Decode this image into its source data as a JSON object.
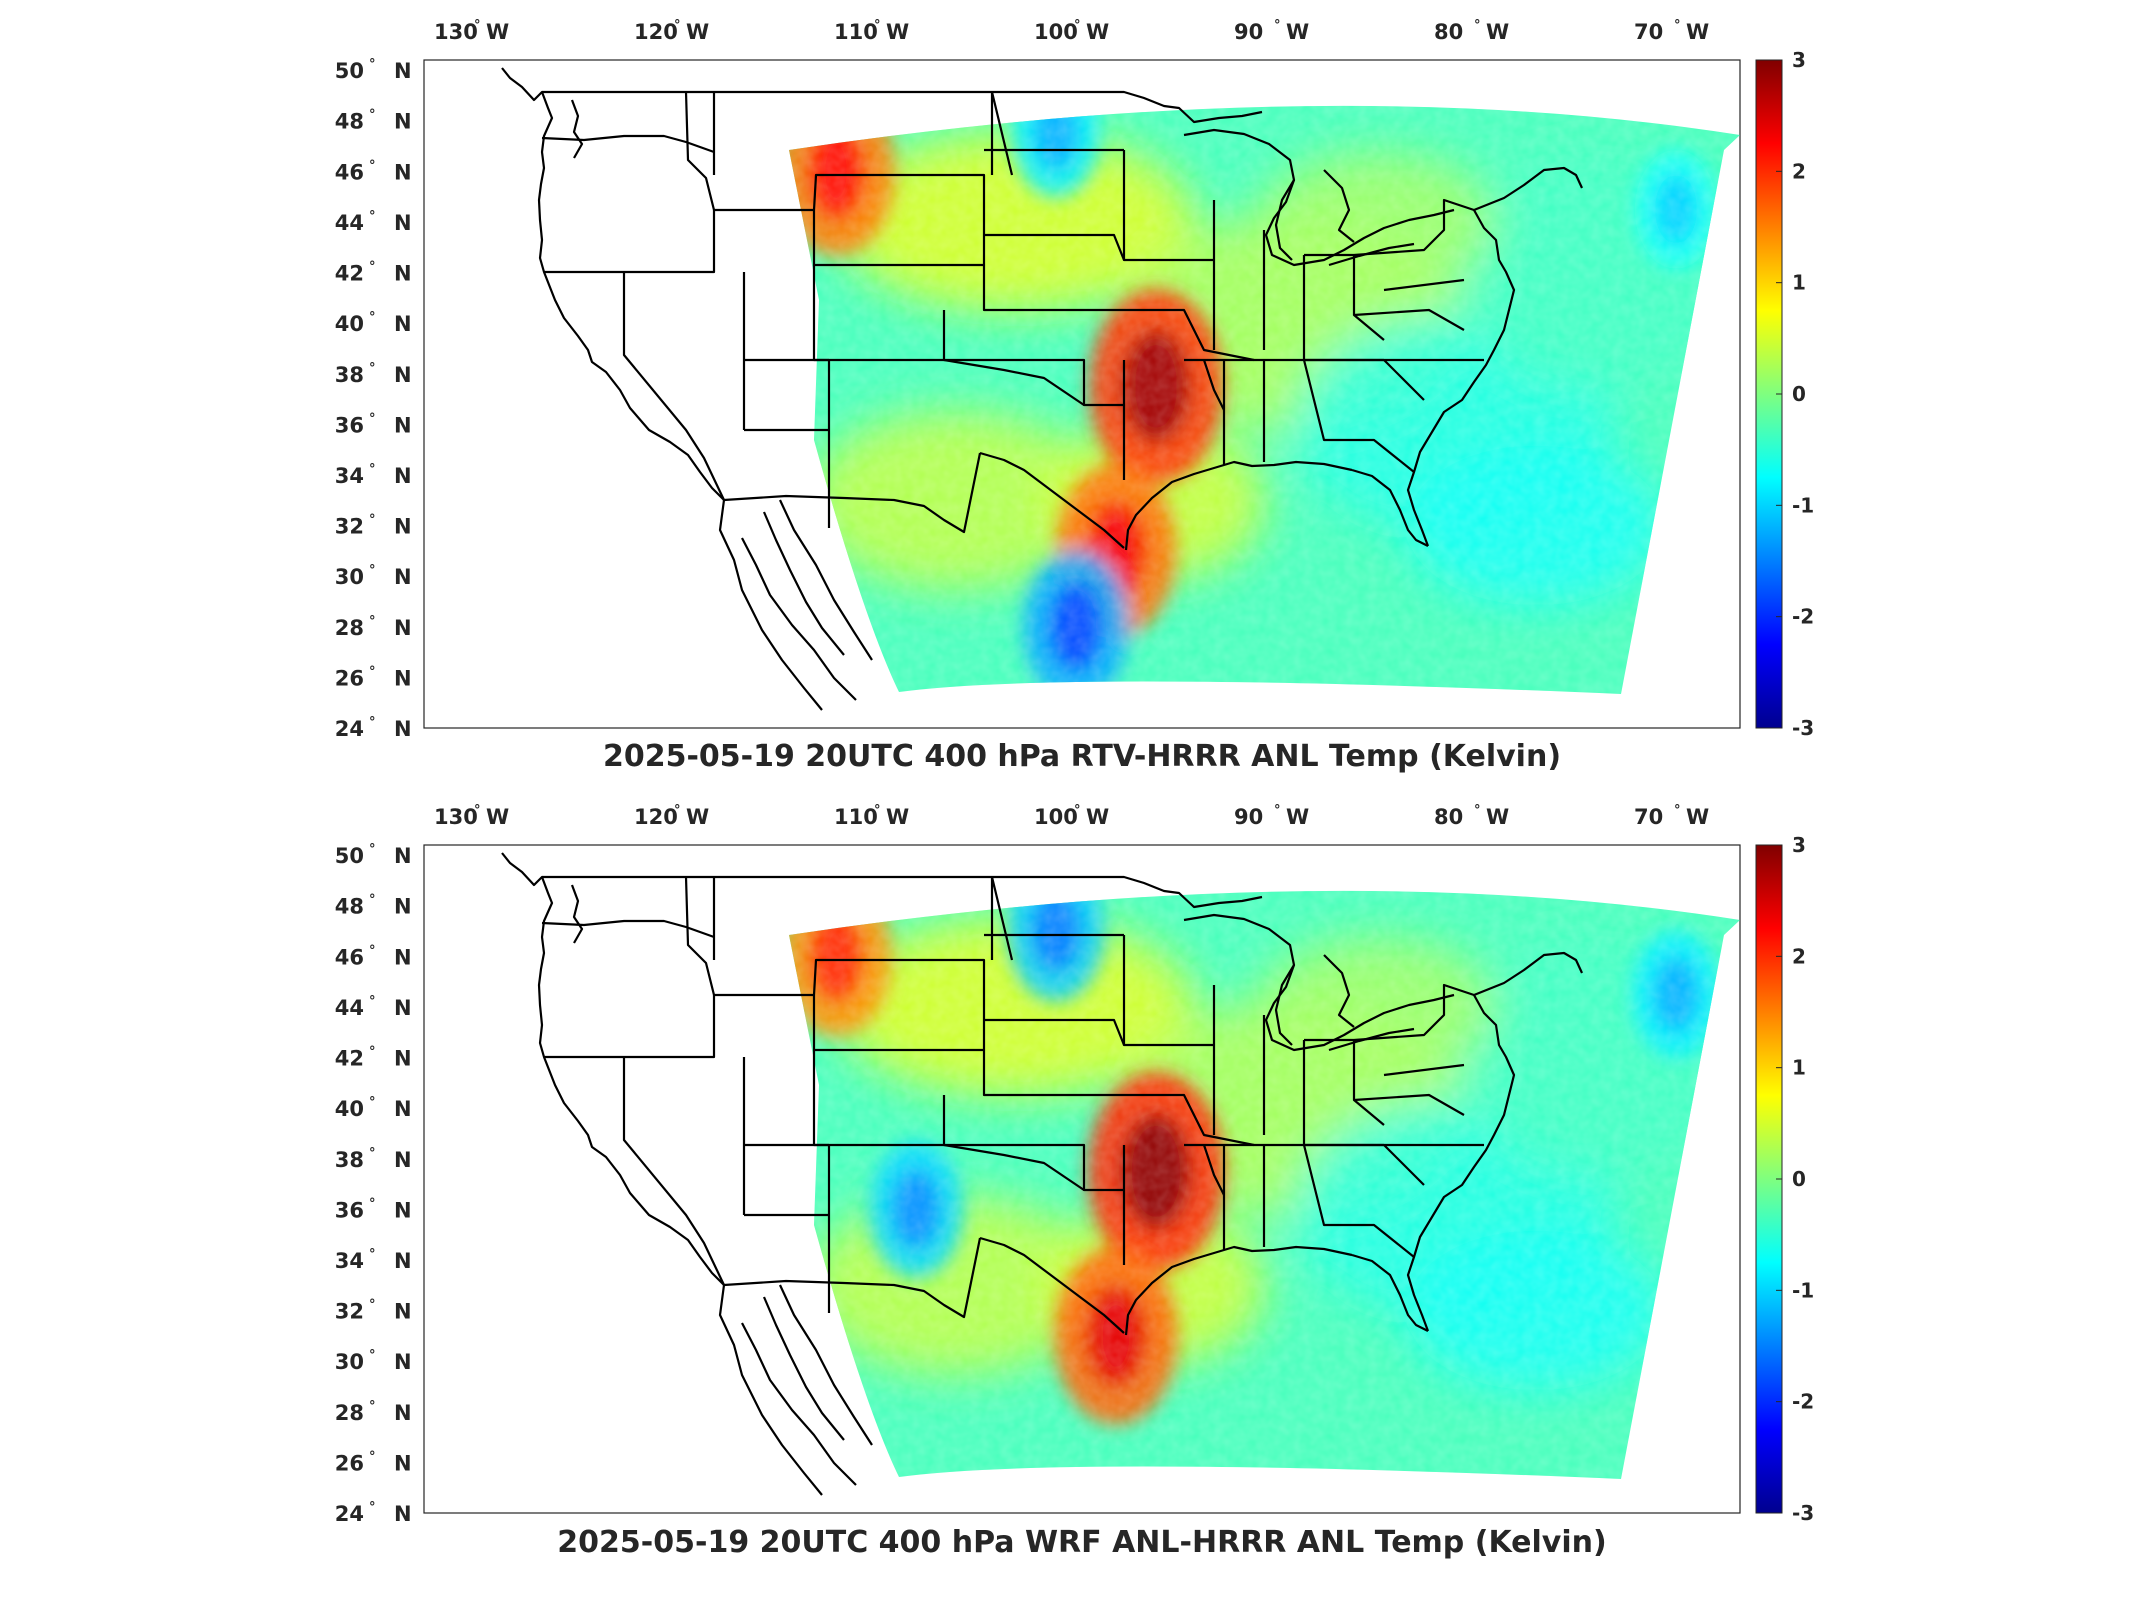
{
  "colors": {
    "colormap": "jet",
    "axes": "#262626",
    "border": "#000000",
    "missing": "#ffffff"
  },
  "panels": [
    {
      "id": "rtv",
      "title": "2025-05-19 20UTC 400 hPa RTV-HRRR ANL Temp (Kelvin)",
      "lon_labels": [
        {
          "num": "130",
          "hemi": "W"
        },
        {
          "num": "120",
          "hemi": "W"
        },
        {
          "num": "110",
          "hemi": "W"
        },
        {
          "num": "100",
          "hemi": "W"
        },
        {
          "num": "90",
          "hemi": "W"
        },
        {
          "num": "80",
          "hemi": "W"
        },
        {
          "num": "70",
          "hemi": "W"
        }
      ],
      "lat_labels": [
        {
          "num": "50",
          "hemi": "N"
        },
        {
          "num": "48",
          "hemi": "N"
        },
        {
          "num": "46",
          "hemi": "N"
        },
        {
          "num": "44",
          "hemi": "N"
        },
        {
          "num": "42",
          "hemi": "N"
        },
        {
          "num": "40",
          "hemi": "N"
        },
        {
          "num": "38",
          "hemi": "N"
        },
        {
          "num": "36",
          "hemi": "N"
        },
        {
          "num": "34",
          "hemi": "N"
        },
        {
          "num": "32",
          "hemi": "N"
        },
        {
          "num": "30",
          "hemi": "N"
        },
        {
          "num": "28",
          "hemi": "N"
        },
        {
          "num": "26",
          "hemi": "N"
        },
        {
          "num": "24",
          "hemi": "N"
        }
      ],
      "colorbar": {
        "min": -3,
        "max": 3,
        "ticks": [
          "3",
          "2",
          "1",
          "0",
          "-1",
          "-2",
          "-3"
        ]
      },
      "anomalies": [
        {
          "name": "northern-rockies-warm",
          "lon": -111,
          "lat": 46,
          "value": 2.2
        },
        {
          "name": "kansas-oklahoma-warm",
          "lon": -95,
          "lat": 37.5,
          "value": 2.8
        },
        {
          "name": "east-texas-warm",
          "lon": -97,
          "lat": 31,
          "value": 2.3
        },
        {
          "name": "south-texas-cool",
          "lon": -99,
          "lat": 28,
          "value": -1.8
        },
        {
          "name": "dakotas-cool",
          "lon": -100,
          "lat": 47.5,
          "value": -1.2
        },
        {
          "name": "new-england-cool",
          "lon": -69,
          "lat": 44.5,
          "value": -1.0
        }
      ]
    },
    {
      "id": "wrf",
      "title": "2025-05-19 20UTC 400 hPa WRF ANL-HRRR ANL Temp (Kelvin)",
      "lon_labels": [
        {
          "num": "130",
          "hemi": "W"
        },
        {
          "num": "120",
          "hemi": "W"
        },
        {
          "num": "110",
          "hemi": "W"
        },
        {
          "num": "100",
          "hemi": "W"
        },
        {
          "num": "90",
          "hemi": "W"
        },
        {
          "num": "80",
          "hemi": "W"
        },
        {
          "num": "70",
          "hemi": "W"
        }
      ],
      "lat_labels": [
        {
          "num": "50",
          "hemi": "N"
        },
        {
          "num": "48",
          "hemi": "N"
        },
        {
          "num": "46",
          "hemi": "N"
        },
        {
          "num": "44",
          "hemi": "N"
        },
        {
          "num": "42",
          "hemi": "N"
        },
        {
          "num": "40",
          "hemi": "N"
        },
        {
          "num": "38",
          "hemi": "N"
        },
        {
          "num": "36",
          "hemi": "N"
        },
        {
          "num": "34",
          "hemi": "N"
        },
        {
          "num": "32",
          "hemi": "N"
        },
        {
          "num": "30",
          "hemi": "N"
        },
        {
          "num": "28",
          "hemi": "N"
        },
        {
          "num": "26",
          "hemi": "N"
        },
        {
          "num": "24",
          "hemi": "N"
        }
      ],
      "colorbar": {
        "min": -3,
        "max": 3,
        "ticks": [
          "3",
          "2",
          "1",
          "0",
          "-1",
          "-2",
          "-3"
        ]
      },
      "anomalies": [
        {
          "name": "northern-rockies-warm",
          "lon": -111,
          "lat": 46,
          "value": 2.0
        },
        {
          "name": "kansas-oklahoma-warm",
          "lon": -95,
          "lat": 37.5,
          "value": 2.9
        },
        {
          "name": "east-texas-warm",
          "lon": -97,
          "lat": 31,
          "value": 2.4
        },
        {
          "name": "dakotas-cool",
          "lon": -100,
          "lat": 47,
          "value": -1.5
        },
        {
          "name": "arizona-new-mexico-cool",
          "lon": -107,
          "lat": 36,
          "value": -1.4
        },
        {
          "name": "new-england-cool",
          "lon": -69,
          "lat": 44.5,
          "value": -1.2
        }
      ]
    }
  ]
}
